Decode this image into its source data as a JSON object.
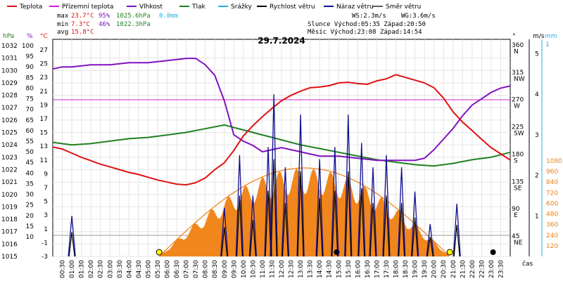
{
  "legend": [
    {
      "label": "Teplota",
      "color": "#e01010"
    },
    {
      "label": "Přízemní teplota",
      "color": "#d020d0"
    },
    {
      "label": "Vlhkost",
      "color": "#8010c0"
    },
    {
      "label": "Tlak",
      "color": "#208020"
    },
    {
      "label": "Srážky",
      "color": "#20b0e0"
    },
    {
      "label": "Rychlost větru",
      "color": "#000000"
    },
    {
      "label": "Náraz větru",
      "color": "#101090"
    },
    {
      "label": "Směr větru",
      "color": "#606060"
    }
  ],
  "stats": {
    "max_label": "max",
    "max_temp": "23.7°C",
    "max_hum": "95%",
    "max_press": "1025.6hPa",
    "rain": "0.0mm",
    "min_label": "min",
    "min_temp": "7.3°C",
    "min_hum": "46%",
    "min_press": "1022.3hPa",
    "avg_label": "avg",
    "avg_temp": "15.8°C"
  },
  "wind": {
    "ws": "WS:2.3m/s",
    "wg": "WG:3.6m/s",
    "sun": "Slunce Východ:05:35  Západ:20:50",
    "moon": "Měsíc  Východ:23:08  Západ:14:54"
  },
  "chart_data": {
    "type": "line",
    "title": "29.7.2024",
    "xlabel": "čas",
    "x_ticks": [
      "00:30",
      "01:00",
      "01:30",
      "02:00",
      "02:30",
      "03:00",
      "03:30",
      "04:00",
      "04:30",
      "05:00",
      "05:30",
      "06:00",
      "06:30",
      "07:00",
      "07:30",
      "08:00",
      "08:30",
      "09:00",
      "09:30",
      "10:00",
      "10:30",
      "11:00",
      "11:30",
      "12:00",
      "12:30",
      "13:00",
      "13:30",
      "14:00",
      "14:30",
      "15:00",
      "15:30",
      "16:00",
      "16:30",
      "17:00",
      "17:30",
      "18:00",
      "18:30",
      "19:00",
      "19:30",
      "20:00",
      "20:30",
      "21:00",
      "21:30",
      "22:00",
      "22:30",
      "23:00",
      "23:30"
    ],
    "axes": {
      "hpa_label": "hPa",
      "hpa_ticks": [
        "1032",
        "1031",
        "1030",
        "1029",
        "1028",
        "1027",
        "1026",
        "1025",
        "1024",
        "1023",
        "1022",
        "1021",
        "1020",
        "1019",
        "1018",
        "1017",
        "1016",
        "1015"
      ],
      "pct_label": "%",
      "pct_ticks": [
        "100",
        "95",
        "90",
        "85",
        "80",
        "75",
        "70",
        "65",
        "60",
        "55",
        "50",
        "45",
        "40",
        "35",
        "30",
        "25",
        "20",
        "15",
        "10"
      ],
      "temp_label": "°C",
      "temp_ticks": [
        "27",
        "25",
        "23",
        "21",
        "19",
        "17",
        "15",
        "13",
        "11",
        "9",
        "7",
        "5",
        "3",
        "1",
        "-1",
        "-3"
      ],
      "deg_label": "°",
      "dir_ticks": [
        {
          "deg": "360",
          "dir": "N"
        },
        {
          "deg": "315",
          "dir": "NW"
        },
        {
          "deg": "270",
          "dir": "W"
        },
        {
          "deg": "225",
          "dir": "SW"
        },
        {
          "deg": "180",
          "dir": "S"
        },
        {
          "deg": "135",
          "dir": "SE"
        },
        {
          "deg": "90",
          "dir": "E"
        },
        {
          "deg": "45",
          "dir": "NE"
        }
      ],
      "ms_label": "m/s",
      "ms_ticks": [
        "5",
        "4",
        "3",
        "2",
        "1"
      ],
      "mm_label": "mm",
      "mm_ticks": [
        "1"
      ],
      "rad_ticks": [
        "1080",
        "960",
        "840",
        "720",
        "600",
        "480",
        "360",
        "240",
        "120"
      ]
    },
    "series": [
      {
        "name": "Teplota",
        "color": "#e01010",
        "x": [
          0,
          0.5,
          1,
          1.5,
          2,
          2.5,
          3,
          3.5,
          4,
          4.5,
          5,
          5.5,
          6,
          6.5,
          7,
          7.5,
          8,
          8.5,
          9,
          9.5,
          10,
          10.5,
          11,
          11.5,
          12,
          12.5,
          13,
          13.5,
          14,
          14.5,
          15,
          15.5,
          16,
          16.5,
          17,
          17.5,
          18,
          18.5,
          19,
          19.5,
          20,
          20.5,
          21,
          21.5,
          22,
          22.5,
          23,
          23.5,
          24
        ],
        "values": [
          12.9,
          12.6,
          12.0,
          11.4,
          10.9,
          10.4,
          10.0,
          9.6,
          9.2,
          8.9,
          8.5,
          8.1,
          7.8,
          7.5,
          7.4,
          7.7,
          8.4,
          9.6,
          10.6,
          12.4,
          14.5,
          16.0,
          17.3,
          18.5,
          19.6,
          20.4,
          21.0,
          21.5,
          21.6,
          21.8,
          22.2,
          22.3,
          22.1,
          22.0,
          22.5,
          22.8,
          23.4,
          23.0,
          22.6,
          22.2,
          21.5,
          20.0,
          18.0,
          16.5,
          15.3,
          14.0,
          12.8,
          11.9,
          11.0
        ]
      },
      {
        "name": "Vlhkost",
        "color": "#8010c0",
        "x": [
          0,
          0.5,
          1,
          2,
          3,
          4,
          5,
          6,
          7,
          7.5,
          8,
          8.5,
          9,
          9.5,
          10,
          10.5,
          11,
          12,
          13,
          14,
          15,
          16,
          17,
          18,
          18.5,
          19,
          19.5,
          20,
          20.5,
          21,
          21.5,
          22,
          22.5,
          23,
          23.5,
          24
        ],
        "values": [
          89,
          90,
          90,
          91,
          91,
          92,
          92,
          93,
          94,
          94,
          91,
          86,
          74,
          58,
          55,
          53,
          50,
          52,
          50,
          48,
          48,
          47,
          46,
          46,
          46,
          46,
          47,
          51,
          56,
          61,
          67,
          72,
          75,
          78,
          80,
          81
        ]
      },
      {
        "name": "Tlak",
        "color": "#208020",
        "x": [
          0,
          1,
          2,
          3,
          4,
          5,
          6,
          7,
          8,
          9,
          10,
          11,
          12,
          13,
          14,
          15,
          16,
          17,
          18,
          19,
          20,
          21,
          22,
          23,
          24
        ],
        "values": [
          1024.2,
          1024.0,
          1024.1,
          1024.3,
          1024.5,
          1024.6,
          1024.8,
          1025.0,
          1025.3,
          1025.6,
          1025.2,
          1024.8,
          1024.4,
          1024.0,
          1023.7,
          1023.4,
          1023.1,
          1022.8,
          1022.6,
          1022.4,
          1022.3,
          1022.5,
          1022.8,
          1023.0,
          1023.4
        ]
      },
      {
        "name": "Přízemní teplota",
        "color": "#d020d0",
        "values": [
          19.7
        ]
      },
      {
        "name": "Srážky",
        "color": "#20b0e0",
        "values": [
          0.0
        ]
      }
    ],
    "wind_gust_peaks": [
      {
        "x": 1.0,
        "v": 1.0
      },
      {
        "x": 9.0,
        "v": 1.2
      },
      {
        "x": 9.8,
        "v": 2.5
      },
      {
        "x": 10.5,
        "v": 1.5
      },
      {
        "x": 11.3,
        "v": 2.7
      },
      {
        "x": 11.6,
        "v": 4.0
      },
      {
        "x": 12.2,
        "v": 2.2
      },
      {
        "x": 13.0,
        "v": 3.5
      },
      {
        "x": 14.0,
        "v": 2.4
      },
      {
        "x": 14.8,
        "v": 2.7
      },
      {
        "x": 15.5,
        "v": 3.5
      },
      {
        "x": 16.2,
        "v": 2.8
      },
      {
        "x": 16.8,
        "v": 2.2
      },
      {
        "x": 17.5,
        "v": 2.5
      },
      {
        "x": 18.3,
        "v": 2.2
      },
      {
        "x": 19.0,
        "v": 1.6
      },
      {
        "x": 19.8,
        "v": 0.8
      },
      {
        "x": 21.2,
        "v": 1.3
      }
    ],
    "sunrise_hour": 5.58,
    "sunset_hour": 20.83,
    "radiation_max": 1000
  }
}
